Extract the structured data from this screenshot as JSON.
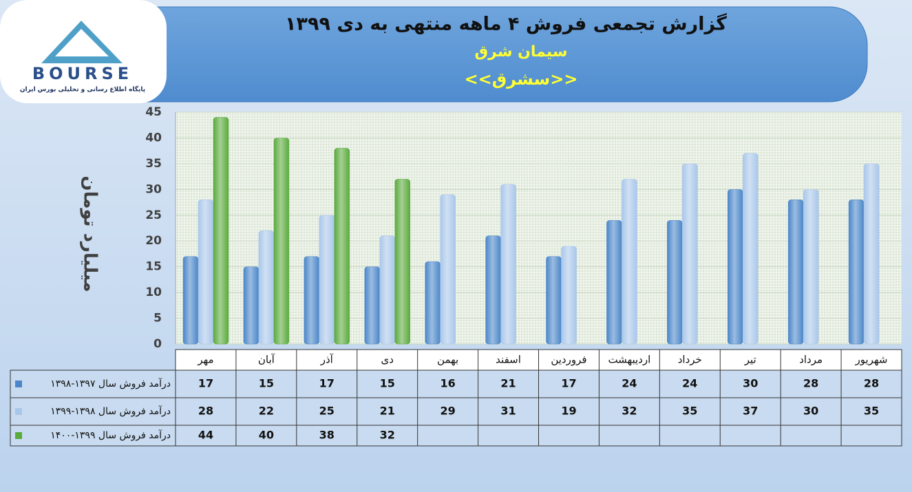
{
  "logo": {
    "name": "BOURSE",
    "tagline": "پایگاه اطلاع رسانی و تحلیلی بورس ایران"
  },
  "chart_data": {
    "type": "bar",
    "title": "گزارش تجمعی فروش ۴ ماهه منتهی به دی ۱۳۹۹",
    "subtitle": "سیمان شرق",
    "symbol": "<<سشرق>>",
    "y_label": "میلیارد تومان",
    "categories": [
      "مهر",
      "آبان",
      "آذر",
      "دی",
      "بهمن",
      "اسفند",
      "فروردین",
      "اردیبهشت",
      "خرداد",
      "تیر",
      "مرداد",
      "شهریور"
    ],
    "series": [
      {
        "name": "درآمد فروش سال ۱۳۹۷-۱۳۹۸",
        "color": "#4a86c8",
        "values": [
          17,
          15,
          17,
          15,
          16,
          21,
          17,
          24,
          24,
          30,
          28,
          28
        ]
      },
      {
        "name": "درآمد فروش سال ۱۳۹۸-۱۳۹۹",
        "color": "#a9c7ea",
        "values": [
          28,
          22,
          25,
          21,
          29,
          31,
          19,
          32,
          35,
          37,
          30,
          35
        ]
      },
      {
        "name": "درآمد فروش سال ۱۳۹۹-۱۴۰۰",
        "color": "#5aaa3c",
        "values": [
          44,
          40,
          38,
          32,
          null,
          null,
          null,
          null,
          null,
          null,
          null,
          null
        ]
      }
    ],
    "ylim": [
      0,
      45
    ],
    "yticks": [
      0,
      5,
      10,
      15,
      20,
      25,
      30,
      35,
      40,
      45
    ],
    "grid": true
  }
}
